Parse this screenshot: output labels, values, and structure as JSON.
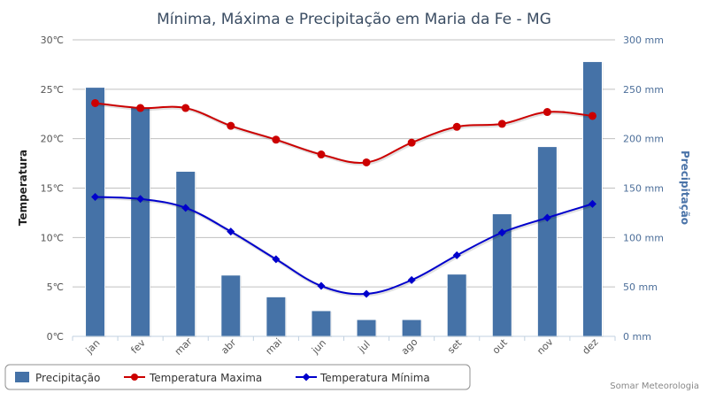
{
  "chart_data": {
    "type": "bar+line",
    "title": "Mínima, Máxima e Precipitação em Maria da Fe - MG",
    "categories": [
      "jan",
      "fev",
      "mar",
      "abr",
      "mai",
      "jun",
      "jul",
      "ago",
      "set",
      "out",
      "nov",
      "dez"
    ],
    "y_left": {
      "label": "Temperatura",
      "range": [
        0,
        30
      ],
      "ticks": [
        "0℃",
        "5℃",
        "10℃",
        "15℃",
        "20℃",
        "25℃",
        "30℃"
      ]
    },
    "y_right": {
      "label": "Precipitação",
      "range": [
        0,
        300
      ],
      "ticks": [
        "0 mm",
        "50 mm",
        "100 mm",
        "150 mm",
        "200 mm",
        "250 mm",
        "300 mm"
      ]
    },
    "series": [
      {
        "name": "Precipitação",
        "type": "bar",
        "axis": "right",
        "color": "#4572a7",
        "values": [
          252,
          232,
          167,
          62,
          40,
          26,
          17,
          17,
          63,
          124,
          192,
          278
        ]
      },
      {
        "name": "Temperatura Maxima",
        "type": "line",
        "axis": "left",
        "color": "#cc0000",
        "marker": "circle",
        "values": [
          23.6,
          23.1,
          23.1,
          21.3,
          19.9,
          18.4,
          17.6,
          19.6,
          21.2,
          21.5,
          22.7,
          22.3
        ]
      },
      {
        "name": "Temperatura Mínima",
        "type": "line",
        "axis": "left",
        "color": "#0000cc",
        "marker": "diamond",
        "values": [
          14.1,
          13.9,
          13.0,
          10.6,
          7.8,
          5.1,
          4.3,
          5.7,
          8.2,
          10.5,
          12.0,
          13.4
        ]
      }
    ],
    "grid": true,
    "legend_position": "bottom-left"
  },
  "credit": "Somar Meteorologia"
}
